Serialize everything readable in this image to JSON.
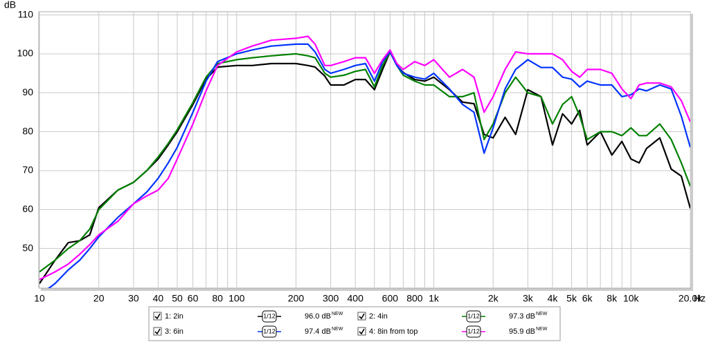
{
  "chart_data": {
    "type": "line",
    "y_label": "dB",
    "x_label": "Hz",
    "log_x": true,
    "grid": true,
    "x": [
      10,
      12,
      14,
      16,
      18,
      20,
      25,
      30,
      35,
      40,
      45,
      50,
      60,
      70,
      80,
      100,
      120,
      150,
      200,
      230,
      250,
      280,
      300,
      350,
      400,
      450,
      500,
      550,
      600,
      650,
      700,
      800,
      900,
      1000,
      1200,
      1400,
      1600,
      1800,
      2000,
      2300,
      2600,
      3000,
      3500,
      4000,
      4500,
      5000,
      5500,
      6000,
      7000,
      8000,
      9000,
      10000,
      11000,
      12000,
      14000,
      16000,
      18000,
      20000
    ],
    "xlim": [
      10,
      20000
    ],
    "ylim": [
      40,
      110
    ],
    "xticks": [
      10,
      20,
      30,
      40,
      50,
      60,
      80,
      100,
      200,
      300,
      400,
      600,
      800,
      {
        "value": 1000,
        "label": "1k"
      },
      {
        "value": 2000,
        "label": "2k"
      },
      {
        "value": 3000,
        "label": "3k"
      },
      {
        "value": 4000,
        "label": "4k"
      },
      {
        "value": 5000,
        "label": "5k"
      },
      {
        "value": 6000,
        "label": "6k"
      },
      {
        "value": 8000,
        "label": "8k"
      },
      {
        "value": 10000,
        "label": "10k"
      },
      {
        "value": 20000,
        "label": "20.0k"
      }
    ],
    "x_minor_ticks": [
      70,
      90,
      500,
      700,
      900,
      7000,
      9000
    ],
    "yticks": [
      50,
      60,
      70,
      80,
      90,
      100,
      110
    ],
    "series": [
      {
        "name": "1: 2in",
        "color": "#000000",
        "level": "96.0 dB",
        "level_note": "NEW",
        "smoothing": "1/12",
        "values": [
          41,
          47,
          51.5,
          52,
          53.5,
          60.5,
          65,
          67,
          70,
          73,
          76.6,
          80,
          87,
          93.5,
          96.6,
          97,
          97,
          97.5,
          97.5,
          97,
          96.6,
          94.3,
          92,
          92,
          93.4,
          93.4,
          90.8,
          96,
          100.5,
          97,
          95.2,
          93.4,
          93,
          94,
          90.8,
          87.6,
          87.2,
          79.3,
          78.4,
          83.7,
          79.3,
          90.8,
          89,
          76.6,
          84.6,
          82,
          85.5,
          76.6,
          80,
          74,
          77.5,
          73,
          72,
          75.7,
          78.4,
          70.4,
          68.6,
          60.3
        ]
      },
      {
        "name": "2: 4in",
        "color": "#008000",
        "level": "97.3 dB",
        "level_note": "NEW",
        "smoothing": "1/12",
        "values": [
          44,
          47,
          50,
          52,
          55,
          60,
          65,
          67,
          70,
          73.5,
          77,
          80.5,
          87.5,
          94,
          97.5,
          98.5,
          99,
          99.5,
          100,
          99.5,
          99,
          95,
          94,
          94.5,
          95.5,
          96,
          91.5,
          97,
          100.5,
          97,
          94.5,
          93,
          92,
          92,
          89,
          89,
          90,
          78,
          82,
          90,
          94,
          90,
          89,
          82,
          87,
          89,
          84,
          78,
          80,
          80,
          79,
          81,
          79,
          79,
          82,
          78,
          72,
          66
        ]
      },
      {
        "name": "3: 6in",
        "color": "#0033ff",
        "level": "97.4 dB",
        "level_note": "NEW",
        "smoothing": "1/12",
        "values": [
          38,
          41,
          44.5,
          47,
          50,
          53,
          58,
          61.5,
          64.5,
          68,
          72,
          76,
          85,
          93,
          98,
          100,
          101,
          102,
          102.5,
          102.5,
          100.5,
          96,
          95,
          96,
          97,
          97.5,
          93,
          98,
          100.5,
          97,
          95,
          94,
          93.5,
          95,
          91,
          87,
          85,
          74.5,
          81,
          91,
          96,
          98.5,
          96.5,
          96.5,
          94,
          93.5,
          91.5,
          93,
          92,
          92,
          89,
          89.5,
          91,
          90.5,
          92,
          91,
          84,
          76
        ]
      },
      {
        "name": "4: 8in from top",
        "color": "#ff00ff",
        "level": "95.9 dB",
        "level_note": "NEW",
        "smoothing": "1/12",
        "values": [
          42,
          44,
          46,
          48.5,
          51,
          53.5,
          57,
          61.5,
          63.5,
          65,
          68,
          73,
          82,
          90.5,
          97,
          100.5,
          102,
          103.5,
          104,
          104.5,
          102.5,
          97,
          97,
          98,
          99,
          99,
          95,
          98.5,
          101,
          97.5,
          96,
          98,
          97,
          98.5,
          94,
          96,
          94,
          85,
          89,
          96,
          100.5,
          100,
          100,
          100,
          98.5,
          95.5,
          94,
          96,
          96,
          95,
          91,
          88.5,
          92,
          92.5,
          92.5,
          91.5,
          88,
          82.5
        ]
      }
    ]
  }
}
